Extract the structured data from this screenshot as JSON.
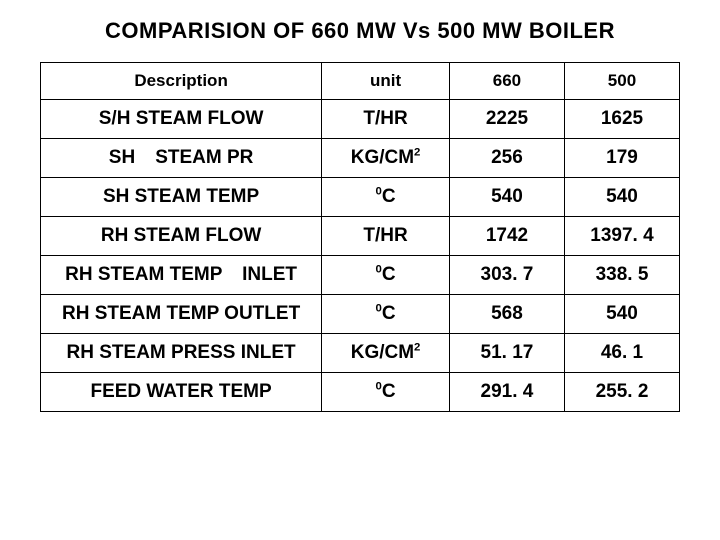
{
  "title": "COMPARISION OF 660 MW Vs 500 MW BOILER",
  "columns": {
    "desc": "Description",
    "unit": "unit",
    "c660": "660",
    "c500": "500"
  },
  "rows": [
    {
      "desc": "S/H STEAM FLOW",
      "unit_html": "T/HR",
      "v660": "2225",
      "v500": "1625"
    },
    {
      "desc": "SH   STEAM PR",
      "unit_html": "KG/CM<span class=\"sup\">2</span>",
      "v660": "256",
      "v500": "179"
    },
    {
      "desc": "SH STEAM TEMP",
      "unit_html": "<span class=\"sup\">0</span>C",
      "v660": "540",
      "v500": "540"
    },
    {
      "desc": "RH STEAM FLOW",
      "unit_html": "T/HR",
      "v660": "1742",
      "v500": "1397. 4"
    },
    {
      "desc": "RH STEAM TEMP   INLET",
      "unit_html": "<span class=\"sup\">0</span>C",
      "v660": "303. 7",
      "v500": "338. 5"
    },
    {
      "desc": "RH STEAM TEMP OUTLET",
      "unit_html": "<span class=\"sup\">0</span>C",
      "v660": "568",
      "v500": "540"
    },
    {
      "desc": "RH STEAM PRESS INLET",
      "unit_html": "KG/CM<span class=\"sup\">2</span>",
      "v660": "51. 17",
      "v500": "46. 1"
    },
    {
      "desc": "FEED WATER TEMP",
      "unit_html": "<span class=\"sup\">0</span>C",
      "v660": "291. 4",
      "v500": "255. 2"
    }
  ]
}
